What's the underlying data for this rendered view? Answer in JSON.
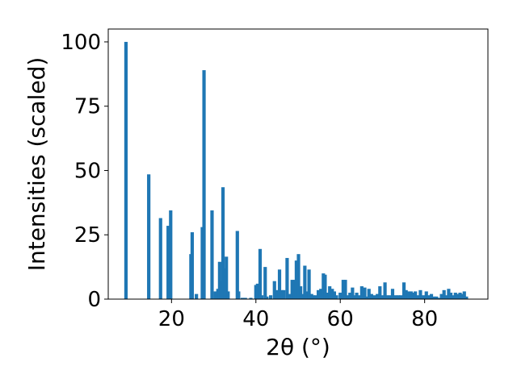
{
  "chart_data": {
    "type": "bar",
    "title": "",
    "xlabel": "2θ (°)",
    "ylabel": "Intensities (scaled)",
    "xlim": [
      5,
      95
    ],
    "ylim": [
      0,
      105
    ],
    "xticks": [
      20,
      40,
      60,
      80
    ],
    "yticks": [
      0,
      25,
      50,
      75,
      100
    ],
    "grid": false,
    "color": "#1f77b4",
    "bar_width": 0.8,
    "x": [
      9.2,
      14.6,
      17.4,
      19.2,
      19.8,
      24.6,
      24.9,
      25.9,
      27.3,
      27.7,
      29.6,
      30.4,
      31.0,
      31.4,
      31.8,
      32.2,
      32.6,
      33.0,
      33.4,
      35.6,
      35.9,
      36.8,
      37.5,
      38.8,
      40.0,
      40.4,
      41.0,
      41.4,
      42.2,
      42.6,
      43.5,
      44.4,
      44.9,
      45.6,
      46.1,
      46.6,
      47.4,
      48.2,
      48.6,
      49.2,
      49.6,
      50.1,
      50.6,
      51.0,
      51.6,
      52.1,
      52.6,
      53.2,
      53.6,
      54.2,
      54.8,
      55.4,
      56.0,
      56.4,
      57.0,
      57.5,
      58.1,
      58.6,
      59.1,
      60.0,
      60.7,
      61.2,
      61.8,
      62.3,
      62.9,
      63.4,
      63.9,
      64.5,
      65.1,
      65.8,
      66.3,
      66.8,
      67.4,
      68.1,
      68.8,
      69.4,
      70.0,
      70.6,
      71.1,
      71.8,
      72.4,
      73.1,
      73.8,
      74.4,
      75.1,
      75.6,
      76.2,
      76.8,
      77.3,
      77.8,
      78.4,
      79.0,
      79.8,
      80.4,
      81.0,
      81.6,
      82.2,
      82.8,
      83.4,
      84.0,
      84.6,
      85.2,
      85.7,
      86.2,
      86.8,
      87.3,
      87.9,
      88.4,
      88.9,
      89.4,
      89.9
    ],
    "values": [
      100,
      48.5,
      31.5,
      28.5,
      34.5,
      17.5,
      26,
      2,
      28,
      89,
      34.5,
      3,
      4,
      14.5,
      7,
      43.5,
      12,
      16.5,
      3,
      26.5,
      3,
      0.5,
      0.5,
      0.5,
      5.5,
      6,
      19.5,
      1.5,
      12.5,
      1,
      1.5,
      7,
      3.5,
      11.5,
      3.5,
      3.5,
      16,
      2,
      7.5,
      7.5,
      15,
      17.5,
      5,
      2,
      13,
      3,
      11.5,
      2,
      1.5,
      1.5,
      3.5,
      4,
      10,
      9.5,
      2.5,
      5,
      4,
      3,
      1.5,
      2.5,
      7.5,
      7.5,
      1.5,
      2.5,
      4.5,
      1.5,
      2.5,
      1.5,
      5,
      4.5,
      1,
      4,
      2,
      1.5,
      2,
      5,
      1.5,
      6.5,
      1.5,
      1.5,
      4,
      1.5,
      1.5,
      1.5,
      6.5,
      3.5,
      3,
      3,
      2.5,
      3,
      1.5,
      3.5,
      1.5,
      3,
      1.5,
      2,
      1,
      1,
      0.5,
      2,
      3.5,
      1.5,
      4,
      2.5,
      1.5,
      2.5,
      2,
      2.5,
      2,
      3,
      1
    ]
  }
}
